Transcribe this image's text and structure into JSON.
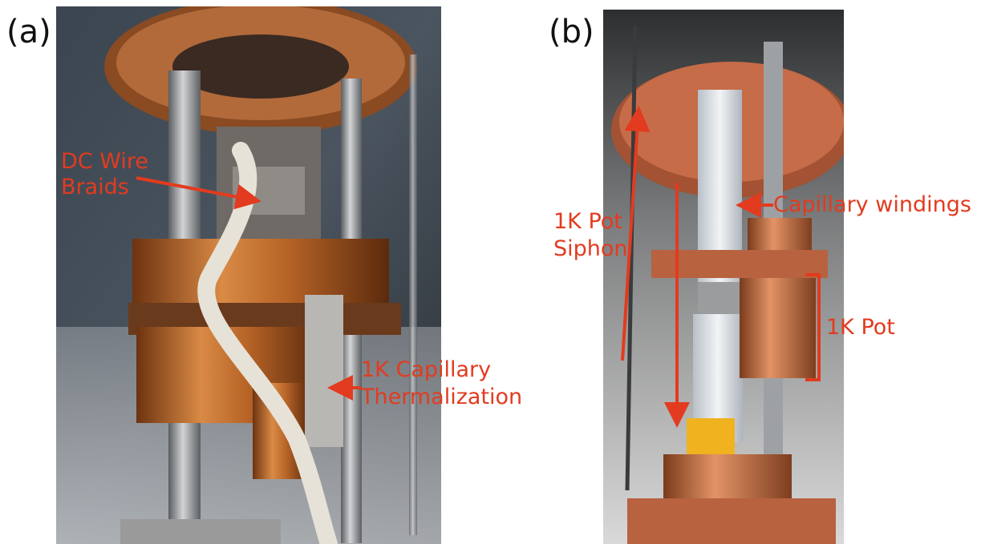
{
  "figure": {
    "panel_a": {
      "letter": "(a)",
      "labels": {
        "dc_wire_line1": "DC Wire",
        "dc_wire_line2": "Braids",
        "capillary_line1": "1K Capillary",
        "capillary_line2": "Thermalization"
      }
    },
    "panel_b": {
      "letter": "(b)",
      "labels": {
        "siphon_line1": "1K Pot",
        "siphon_line2": "Siphon",
        "windings": "Capillary windings",
        "pot": "1K Pot"
      }
    }
  },
  "colors": {
    "annotation": "#e23b1f",
    "copper": "#c06a3c",
    "steel": "#a7a9ab"
  }
}
